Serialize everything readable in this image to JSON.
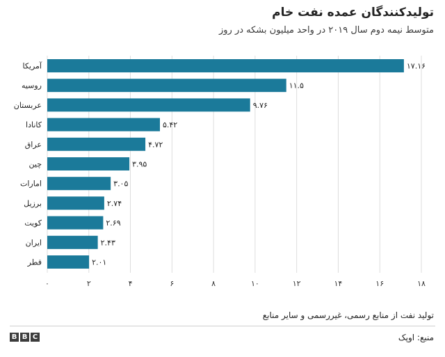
{
  "chart_data": {
    "type": "bar",
    "orientation": "horizontal",
    "title": "تولیدکنندگان عمده نفت خام",
    "subtitle": "متوسط نیمه دوم سال ۲۰۱۹ در واحد میلیون بشکه در روز",
    "categories": [
      "آمریکا",
      "روسیه",
      "عربستان",
      "کانادا",
      "عراق",
      "چین",
      "امارات",
      "برزیل",
      "کویت",
      "ایران",
      "قطر"
    ],
    "values": [
      17.16,
      11.5,
      9.76,
      5.42,
      4.72,
      3.95,
      3.05,
      2.74,
      2.69,
      2.43,
      2.01
    ],
    "value_labels": [
      "۱۷.۱۶",
      "۱۱.۵",
      "۹.۷۶",
      "۵.۴۲",
      "۴.۷۲",
      "۳.۹۵",
      "۳.۰۵",
      "۲.۷۴",
      "۲.۶۹",
      "۲.۴۳",
      "۲.۰۱"
    ],
    "xlim": [
      0,
      18
    ],
    "x_ticks": [
      0,
      2,
      4,
      6,
      8,
      10,
      12,
      14,
      16,
      18
    ],
    "x_tick_labels": [
      "۰",
      "۲",
      "۴",
      "۶",
      "۸",
      "۱۰",
      "۱۲",
      "۱۴",
      "۱۶",
      "۱۸"
    ],
    "grid": "vertical",
    "bar_color": "#1b7a9a",
    "xlabel": "",
    "ylabel": ""
  },
  "footer": {
    "note": "تولید نفت از منابع رسمی، غیررسمی و سایر منابع",
    "source": "منبع: اوپک",
    "logo_letters": [
      "B",
      "B",
      "C"
    ]
  }
}
